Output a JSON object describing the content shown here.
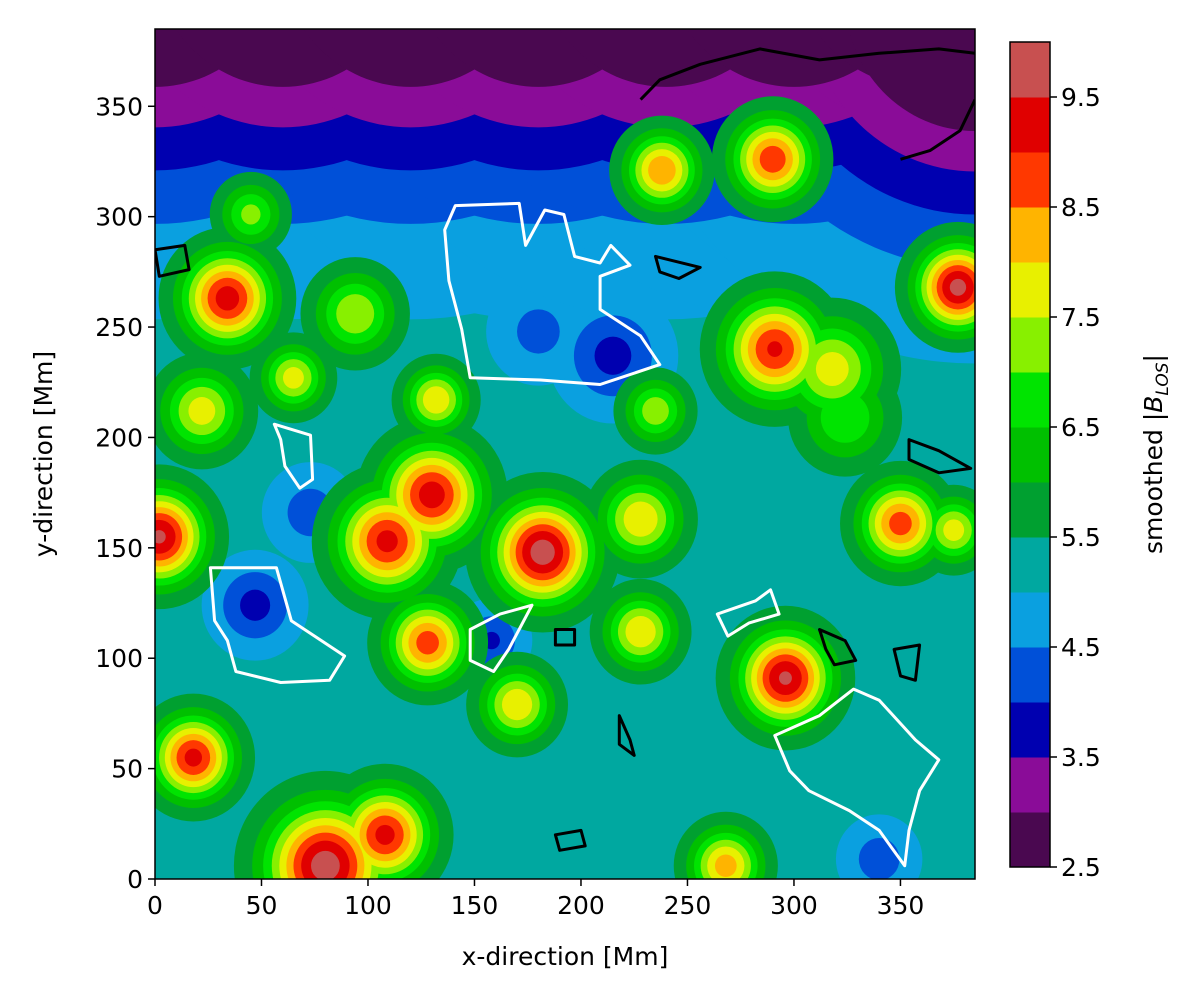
{
  "chart_data": {
    "type": "contourf",
    "xlabel": "x-direction [Mm]",
    "ylabel": "y-direction [Mm]",
    "xlim": [
      0,
      385
    ],
    "ylim": [
      0,
      385
    ],
    "xticks": [
      0,
      50,
      100,
      150,
      200,
      250,
      300,
      350
    ],
    "yticks": [
      0,
      50,
      100,
      150,
      200,
      250,
      300,
      350
    ],
    "colorbar_label": {
      "text": "smoothed |",
      "symbol": "B",
      "sub": "LOS",
      "end": "|"
    },
    "levels": [
      2.5,
      3.0,
      3.5,
      4.0,
      4.5,
      5.0,
      5.5,
      6.0,
      6.5,
      7.0,
      7.5,
      8.0,
      8.5,
      9.0,
      9.5,
      10.0
    ],
    "colors": [
      "#4a0850",
      "#8a0c98",
      "#0000b0",
      "#0050d8",
      "#0aa0e0",
      "#00a8a0",
      "#00a030",
      "#00c000",
      "#00e400",
      "#88f000",
      "#e8f000",
      "#ffb400",
      "#ff3800",
      "#e00000",
      "#c85050"
    ],
    "colorbar_ticks": [
      2.5,
      3.5,
      4.5,
      5.5,
      6.5,
      7.5,
      8.5,
      9.5
    ],
    "base": 5.2,
    "blobs": [
      {
        "x": 182,
        "y": 148,
        "value": 9.8,
        "radius": 22
      },
      {
        "x": 2,
        "y": 155,
        "value": 9.6,
        "radius": 20
      },
      {
        "x": 34,
        "y": 263,
        "value": 9.3,
        "radius": 20
      },
      {
        "x": 130,
        "y": 174,
        "value": 9.3,
        "radius": 22
      },
      {
        "x": 109,
        "y": 153,
        "value": 9.2,
        "radius": 22
      },
      {
        "x": 128,
        "y": 107,
        "value": 8.8,
        "radius": 18
      },
      {
        "x": 18,
        "y": 55,
        "value": 9.2,
        "radius": 18
      },
      {
        "x": 108,
        "y": 20,
        "value": 9.2,
        "radius": 20
      },
      {
        "x": 80,
        "y": 6,
        "value": 9.8,
        "radius": 26
      },
      {
        "x": 296,
        "y": 91,
        "value": 9.6,
        "radius": 20
      },
      {
        "x": 291,
        "y": 240,
        "value": 9.1,
        "radius": 22
      },
      {
        "x": 290,
        "y": 326,
        "value": 8.9,
        "radius": 18
      },
      {
        "x": 238,
        "y": 321,
        "value": 8.5,
        "radius": 16
      },
      {
        "x": 377,
        "y": 268,
        "value": 9.7,
        "radius": 18
      },
      {
        "x": 350,
        "y": 161,
        "value": 8.8,
        "radius": 18
      },
      {
        "x": 228,
        "y": 163,
        "value": 8.0,
        "radius": 18
      },
      {
        "x": 228,
        "y": 112,
        "value": 8.0,
        "radius": 16
      },
      {
        "x": 318,
        "y": 231,
        "value": 7.8,
        "radius": 22
      },
      {
        "x": 170,
        "y": 79,
        "value": 8.0,
        "radius": 16
      },
      {
        "x": 94,
        "y": 256,
        "value": 7.5,
        "radius": 18
      },
      {
        "x": 65,
        "y": 227,
        "value": 7.8,
        "radius": 14
      },
      {
        "x": 22,
        "y": 212,
        "value": 7.8,
        "radius": 18
      },
      {
        "x": 132,
        "y": 217,
        "value": 8.0,
        "radius": 14
      },
      {
        "x": 45,
        "y": 301,
        "value": 7.2,
        "radius": 14
      },
      {
        "x": 268,
        "y": 6,
        "value": 8.3,
        "radius": 16
      },
      {
        "x": 375,
        "y": 158,
        "value": 7.8,
        "radius": 14
      },
      {
        "x": 235,
        "y": 212,
        "value": 7.4,
        "radius": 14
      },
      {
        "x": 324,
        "y": 209,
        "value": 7,
        "radius": 20
      },
      {
        "x": 47,
        "y": 124,
        "value": 3.8,
        "radius": 18
      },
      {
        "x": 158,
        "y": 108,
        "value": 3.9,
        "radius": 14
      },
      {
        "x": 215,
        "y": 237,
        "value": 3.8,
        "radius": 22
      },
      {
        "x": 73,
        "y": 166,
        "value": 4.2,
        "radius": 18
      },
      {
        "x": 340,
        "y": 9,
        "value": 4.2,
        "radius": 16
      },
      {
        "x": 180,
        "y": 248,
        "value": 4.3,
        "radius": 20
      },
      {
        "x": 0,
        "y": 420,
        "value": 2.0,
        "radius": 100
      },
      {
        "x": 60,
        "y": 420,
        "value": 2.0,
        "radius": 100
      },
      {
        "x": 120,
        "y": 420,
        "value": 2.0,
        "radius": 100
      },
      {
        "x": 180,
        "y": 420,
        "value": 2.0,
        "radius": 100
      },
      {
        "x": 240,
        "y": 420,
        "value": 2.0,
        "radius": 100
      },
      {
        "x": 300,
        "y": 420,
        "value": 2.0,
        "radius": 100
      },
      {
        "x": 360,
        "y": 420,
        "value": 2.0,
        "radius": 100
      },
      {
        "x": 385,
        "y": 400,
        "value": 2.0,
        "radius": 100
      }
    ],
    "contours": [
      {
        "color": "#ffffff",
        "closed": true,
        "x": [
          141,
          171,
          174,
          183,
          192,
          197,
          209,
          214,
          223,
          209,
          209,
          228,
          237,
          209,
          181,
          148,
          144,
          138,
          136
        ],
        "y": [
          305,
          306,
          287,
          303,
          301,
          282,
          279,
          287,
          278,
          273,
          258,
          246,
          233,
          224,
          226,
          227,
          249,
          271,
          294
        ]
      },
      {
        "color": "#ffffff",
        "closed": true,
        "x": [
          26,
          57,
          64,
          89,
          82,
          59,
          38,
          34,
          28
        ],
        "y": [
          141,
          141,
          117,
          101,
          90,
          89,
          94,
          108,
          117
        ]
      },
      {
        "color": "#ffffff",
        "closed": true,
        "x": [
          148,
          162,
          177,
          166,
          159,
          148
        ],
        "y": [
          113,
          120,
          124,
          104,
          94,
          99
        ]
      },
      {
        "color": "#ffffff",
        "closed": true,
        "x": [
          291,
          312,
          328,
          340,
          357,
          368,
          359,
          354,
          352,
          340,
          326,
          307,
          298
        ],
        "y": [
          65,
          74,
          86,
          81,
          63,
          54,
          40,
          22,
          6,
          22,
          31,
          40,
          49
        ]
      },
      {
        "color": "#ffffff",
        "closed": true,
        "x": [
          56,
          73,
          74,
          68,
          61,
          59
        ],
        "y": [
          206,
          201,
          181,
          177,
          187,
          199
        ]
      },
      {
        "color": "#ffffff",
        "closed": true,
        "x": [
          264,
          282,
          289,
          293,
          279,
          269
        ],
        "y": [
          120,
          126,
          131,
          120,
          116,
          110
        ]
      },
      {
        "color": "#000000",
        "closed": false,
        "x": [
          228,
          237,
          256,
          284,
          312,
          340,
          368,
          385
        ],
        "y": [
          353,
          362,
          369,
          376,
          371,
          374,
          376,
          374
        ]
      },
      {
        "color": "#000000",
        "closed": false,
        "x": [
          385,
          378,
          364,
          350
        ],
        "y": [
          353,
          339,
          330,
          326
        ]
      },
      {
        "color": "#000000",
        "closed": true,
        "x": [
          354,
          368,
          383,
          368,
          354
        ],
        "y": [
          199,
          194,
          186,
          184,
          190
        ]
      },
      {
        "color": "#000000",
        "closed": true,
        "x": [
          312,
          324,
          329,
          319,
          315
        ],
        "y": [
          113,
          108,
          99,
          97,
          104
        ]
      },
      {
        "color": "#000000",
        "closed": true,
        "x": [
          188,
          197,
          197,
          188
        ],
        "y": [
          113,
          113,
          106,
          106
        ]
      },
      {
        "color": "#000000",
        "closed": true,
        "x": [
          188,
          200,
          202,
          190
        ],
        "y": [
          20,
          22,
          15,
          13
        ]
      },
      {
        "color": "#000000",
        "closed": true,
        "x": [
          235,
          256,
          246,
          237
        ],
        "y": [
          282,
          277,
          272,
          275
        ]
      },
      {
        "color": "#000000",
        "closed": true,
        "x": [
          0,
          14,
          16,
          2
        ],
        "y": [
          285,
          287,
          276,
          273
        ]
      },
      {
        "color": "#000000",
        "closed": true,
        "x": [
          347,
          359,
          357,
          350
        ],
        "y": [
          104,
          106,
          90,
          92
        ]
      },
      {
        "color": "#000000",
        "closed": true,
        "x": [
          218,
          223,
          225,
          218
        ],
        "y": [
          74,
          63,
          56,
          61
        ]
      }
    ]
  }
}
